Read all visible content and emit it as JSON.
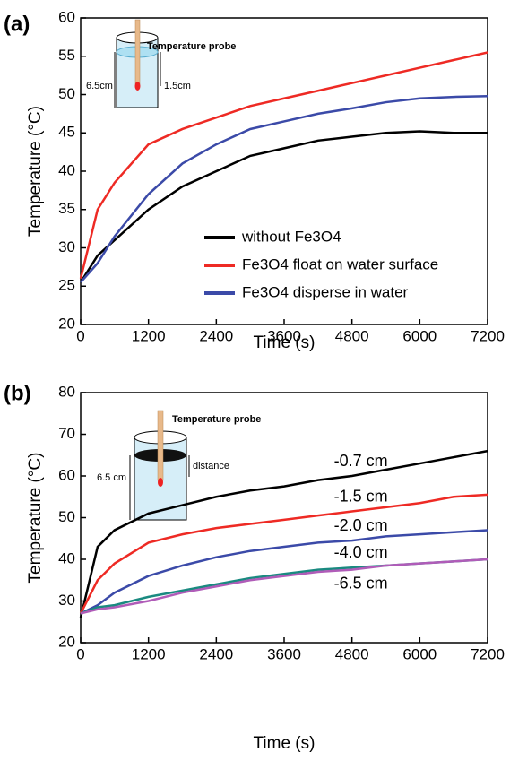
{
  "chart_data": [
    {
      "type": "line",
      "panel_label": "(a)",
      "xlabel": "Time (s)",
      "ylabel": "Temperature (°C)",
      "x": [
        0,
        300,
        600,
        1200,
        1800,
        2400,
        3000,
        3600,
        4200,
        4800,
        5400,
        6000,
        6600,
        7200
      ],
      "xlim": [
        0,
        7200
      ],
      "xticks": [
        0,
        1200,
        2400,
        3600,
        4800,
        6000,
        7200
      ],
      "ylim": [
        20,
        60
      ],
      "yticks": [
        20,
        25,
        30,
        35,
        40,
        45,
        50,
        55,
        60
      ],
      "legend": "lower right",
      "inset_labels": [
        "Temperature probe",
        "6.5cm",
        "1.5cm"
      ],
      "series": [
        {
          "name": "without Fe3O4",
          "color": "#000000",
          "values": [
            25.5,
            29,
            31,
            35,
            38,
            40,
            42,
            43,
            44,
            44.5,
            45,
            45.2,
            45,
            45
          ]
        },
        {
          "name": "Fe3O4 float on water surface",
          "color": "#ee2a24",
          "values": [
            26,
            35,
            38.5,
            43.5,
            45.5,
            47,
            48.5,
            49.5,
            50.5,
            51.5,
            52.5,
            53.5,
            54.5,
            55.5
          ]
        },
        {
          "name": "Fe3O4 disperse in water",
          "color": "#3b4aa8",
          "values": [
            25.5,
            28,
            31.5,
            37,
            41,
            43.5,
            45.5,
            46.5,
            47.5,
            48.2,
            49,
            49.5,
            49.7,
            49.8
          ]
        }
      ]
    },
    {
      "type": "line",
      "panel_label": "(b)",
      "xlabel": "Time (s)",
      "ylabel": "Temperature (°C)",
      "x": [
        0,
        300,
        600,
        1200,
        1800,
        2400,
        3000,
        3600,
        4200,
        4800,
        5400,
        6000,
        6600,
        7200
      ],
      "xlim": [
        0,
        7200
      ],
      "xticks": [
        0,
        1200,
        2400,
        3600,
        4800,
        6000,
        7200
      ],
      "ylim": [
        20,
        80
      ],
      "yticks": [
        20,
        30,
        40,
        50,
        60,
        70,
        80
      ],
      "legend": "direct",
      "inset_labels": [
        "Temperature probe",
        "6.5 cm",
        "distance"
      ],
      "series": [
        {
          "name": "-0.7 cm",
          "color": "#000000",
          "values": [
            26,
            43,
            47,
            51,
            53,
            55,
            56.5,
            57.5,
            59,
            60,
            61.5,
            63,
            64.5,
            66
          ]
        },
        {
          "name": "-1.5 cm",
          "color": "#ee2a24",
          "values": [
            27,
            35,
            39,
            44,
            46,
            47.5,
            48.5,
            49.5,
            50.5,
            51.5,
            52.5,
            53.5,
            55,
            55.5
          ]
        },
        {
          "name": "-2.0 cm",
          "color": "#3b4aa8",
          "values": [
            27,
            29,
            32,
            36,
            38.5,
            40.5,
            42,
            43,
            44,
            44.5,
            45.5,
            46,
            46.5,
            47
          ]
        },
        {
          "name": "-4.0 cm",
          "color": "#1a8a80",
          "values": [
            27,
            28.5,
            29,
            31,
            32.5,
            34,
            35.5,
            36.5,
            37.5,
            38,
            38.5,
            39,
            39.5,
            40
          ]
        },
        {
          "name": "-6.5 cm",
          "color": "#b05cb8",
          "values": [
            27,
            28,
            28.5,
            30,
            32,
            33.5,
            35,
            36,
            37,
            37.5,
            38.5,
            39,
            39.5,
            40
          ]
        }
      ]
    }
  ]
}
